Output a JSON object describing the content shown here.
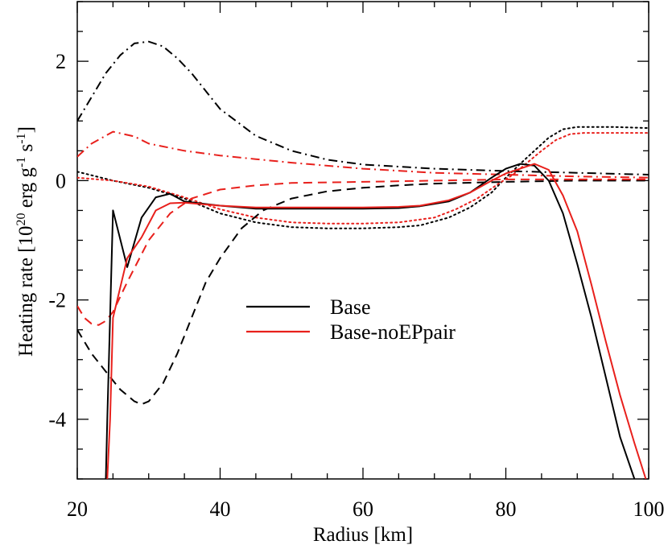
{
  "chart_data": {
    "type": "line",
    "title": "",
    "xlabel": "Radius [km]",
    "ylabel": {
      "prefix": "Heating rate [10",
      "exp1": "20",
      "mid1": " erg g",
      "exp2": "-1",
      "mid2": " s",
      "exp3": "-1",
      "suffix": "]"
    },
    "xlim": [
      20,
      100
    ],
    "ylim": [
      -5,
      3
    ],
    "xticks": [
      20,
      40,
      60,
      80,
      100
    ],
    "xtick_labels": [
      "20",
      "40",
      "60",
      "80",
      "100"
    ],
    "yticks": [
      -4,
      -2,
      0,
      2
    ],
    "ytick_labels": [
      "-4",
      "-2",
      "0",
      "2"
    ],
    "grid": false,
    "legend_position": "center",
    "legend": [
      {
        "label": "Base",
        "color": "#000000"
      },
      {
        "label": "Base-noEPpair",
        "color": "#e8201c"
      }
    ],
    "series": [
      {
        "name": "Base total",
        "model": "Base",
        "style": "solid",
        "color": "#000000",
        "x": [
          24.0,
          24.2,
          25.0,
          27.0,
          29.0,
          31.0,
          33.0,
          35.0,
          40.0,
          45.0,
          50.0,
          55.0,
          60.0,
          65.0,
          68.0,
          72.0,
          75.0,
          78.0,
          80.0,
          82.0,
          84.0,
          86.0,
          88.0,
          90.0,
          92.0,
          94.0,
          96.0,
          98.0
        ],
        "y": [
          -5.0,
          -4.0,
          -0.5,
          -1.45,
          -0.62,
          -0.28,
          -0.22,
          -0.35,
          -0.42,
          -0.47,
          -0.47,
          -0.47,
          -0.47,
          -0.46,
          -0.43,
          -0.35,
          -0.2,
          0.05,
          0.2,
          0.28,
          0.25,
          0.0,
          -0.55,
          -1.4,
          -2.3,
          -3.3,
          -4.3,
          -5.0
        ]
      },
      {
        "name": "Base-noEPpair total",
        "model": "Base-noEPpair",
        "style": "solid",
        "color": "#e8201c",
        "x": [
          24.2,
          24.6,
          25.0,
          27.0,
          29.0,
          31.0,
          33.0,
          35.0,
          40.0,
          45.0,
          50.0,
          55.0,
          60.0,
          65.0,
          68.0,
          72.0,
          75.0,
          78.0,
          80.0,
          82.0,
          84.0,
          86.0,
          88.0,
          90.0,
          92.0,
          94.0,
          96.0,
          98.0,
          99.6
        ],
        "y": [
          -5.0,
          -4.0,
          -2.3,
          -1.3,
          -0.95,
          -0.5,
          -0.38,
          -0.37,
          -0.42,
          -0.45,
          -0.45,
          -0.45,
          -0.45,
          -0.44,
          -0.42,
          -0.33,
          -0.2,
          0.0,
          0.12,
          0.2,
          0.28,
          0.18,
          -0.25,
          -0.85,
          -1.75,
          -2.7,
          -3.6,
          -4.4,
          -5.0
        ]
      },
      {
        "name": "Base dash-dot",
        "model": "Base",
        "style": "dashdot",
        "color": "#000000",
        "x": [
          20,
          22,
          24,
          26,
          28,
          30,
          32,
          34,
          36,
          38,
          40,
          45,
          50,
          55,
          60,
          70,
          80,
          90,
          100
        ],
        "y": [
          1.0,
          1.4,
          1.8,
          2.1,
          2.3,
          2.33,
          2.25,
          2.05,
          1.8,
          1.5,
          1.2,
          0.75,
          0.5,
          0.35,
          0.27,
          0.2,
          0.16,
          0.13,
          0.1
        ]
      },
      {
        "name": "Base-noEPpair dash-dot",
        "model": "Base-noEPpair",
        "style": "dashdot",
        "color": "#e8201c",
        "x": [
          20,
          22,
          25,
          28,
          30,
          35,
          40,
          45,
          50,
          60,
          70,
          80,
          90,
          100
        ],
        "y": [
          0.4,
          0.62,
          0.82,
          0.74,
          0.62,
          0.5,
          0.42,
          0.36,
          0.3,
          0.2,
          0.13,
          0.1,
          0.07,
          0.05
        ]
      },
      {
        "name": "Base dashed",
        "model": "Base",
        "style": "dashed",
        "color": "#000000",
        "x": [
          20,
          22,
          24,
          26,
          28,
          29,
          30,
          32,
          34,
          36,
          38,
          40,
          43,
          46,
          50,
          55,
          60,
          65,
          70,
          80,
          90,
          100
        ],
        "y": [
          -2.5,
          -2.9,
          -3.2,
          -3.5,
          -3.7,
          -3.75,
          -3.7,
          -3.4,
          -2.9,
          -2.3,
          -1.7,
          -1.3,
          -0.8,
          -0.5,
          -0.3,
          -0.18,
          -0.12,
          -0.08,
          -0.05,
          -0.02,
          0.0,
          0.0
        ]
      },
      {
        "name": "Base-noEPpair dashed",
        "model": "Base-noEPpair",
        "style": "dashed",
        "color": "#e8201c",
        "x": [
          20,
          21,
          22,
          23,
          24,
          25,
          27,
          30,
          33,
          36,
          40,
          45,
          50,
          60,
          70,
          80,
          90,
          100
        ],
        "y": [
          -2.1,
          -2.3,
          -2.4,
          -2.42,
          -2.35,
          -2.2,
          -1.7,
          -1.0,
          -0.55,
          -0.3,
          -0.15,
          -0.08,
          -0.04,
          -0.02,
          0.0,
          0.02,
          0.02,
          0.02
        ]
      },
      {
        "name": "Base dotted",
        "model": "Base",
        "style": "dotted",
        "color": "#000000",
        "x": [
          20,
          25,
          30,
          35,
          40,
          45,
          50,
          55,
          60,
          65,
          68,
          72,
          75,
          78,
          80,
          82,
          84,
          86,
          88,
          90,
          95,
          100
        ],
        "y": [
          0.15,
          0.0,
          -0.12,
          -0.3,
          -0.55,
          -0.7,
          -0.78,
          -0.8,
          -0.8,
          -0.78,
          -0.75,
          -0.62,
          -0.45,
          -0.2,
          0.05,
          0.28,
          0.5,
          0.72,
          0.86,
          0.9,
          0.9,
          0.88
        ]
      },
      {
        "name": "Base-noEPpair dotted",
        "model": "Base-noEPpair",
        "style": "dotted",
        "color": "#e8201c",
        "x": [
          20,
          25,
          30,
          35,
          40,
          45,
          50,
          55,
          60,
          65,
          70,
          73,
          76,
          79,
          81,
          83,
          85,
          87,
          89,
          91,
          95,
          100
        ],
        "y": [
          0.05,
          0.0,
          -0.1,
          -0.28,
          -0.48,
          -0.62,
          -0.7,
          -0.72,
          -0.72,
          -0.7,
          -0.62,
          -0.48,
          -0.3,
          -0.05,
          0.1,
          0.3,
          0.5,
          0.68,
          0.78,
          0.8,
          0.8,
          0.8
        ]
      }
    ]
  }
}
